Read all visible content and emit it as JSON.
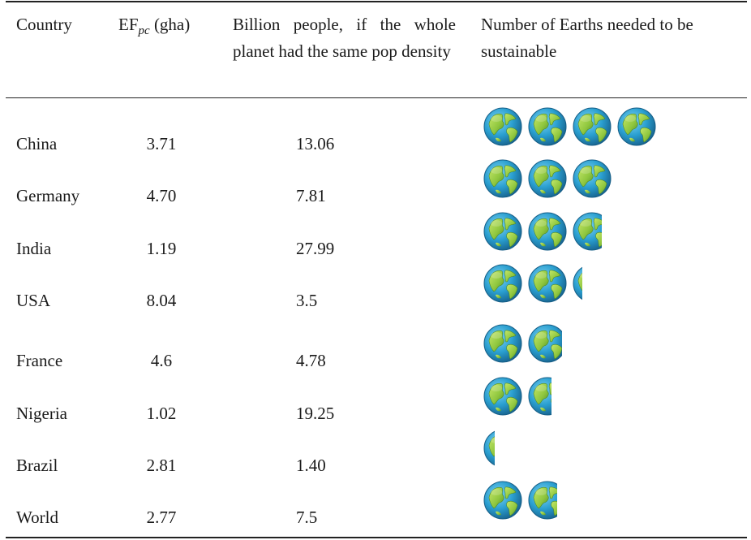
{
  "table": {
    "headers": {
      "country": "Country",
      "ef_main": "EF",
      "ef_sub": "pc",
      "ef_unit": " (gha)",
      "billion": "Billion people, if the whole planet had the same pop density",
      "earths": "Number of Earths needed to be sustainable"
    },
    "rows": [
      {
        "country": "China",
        "ef": "3.71",
        "billion": "13.06",
        "earths": 4
      },
      {
        "country": "Germany",
        "ef": "4.70",
        "billion": "7.81",
        "earths": 3
      },
      {
        "country": "India",
        "ef": "1.19",
        "billion": "27.99",
        "earths": 2.75
      },
      {
        "country": "USA",
        "ef": "8.04",
        "billion": "3.5",
        "earths": 2.25
      },
      {
        "country": "France",
        "ef": "4.6",
        "billion": "4.78",
        "earths": 1.88
      },
      {
        "country": "Nigeria",
        "ef": "1.02",
        "billion": "19.25",
        "earths": 1.6
      },
      {
        "country": "Brazil",
        "ef": "2.81",
        "billion": "1.40",
        "earths": 0.3
      },
      {
        "country": "World",
        "ef": "2.77",
        "billion": "7.5",
        "earths": 1.75
      }
    ]
  },
  "colors": {
    "ocean": "#2a9fd0",
    "ocean_dark": "#1b6f9c",
    "land": "#9cd247",
    "land_dark": "#5a9a2c"
  },
  "icons": {
    "earth": "earth-globe-icon"
  }
}
